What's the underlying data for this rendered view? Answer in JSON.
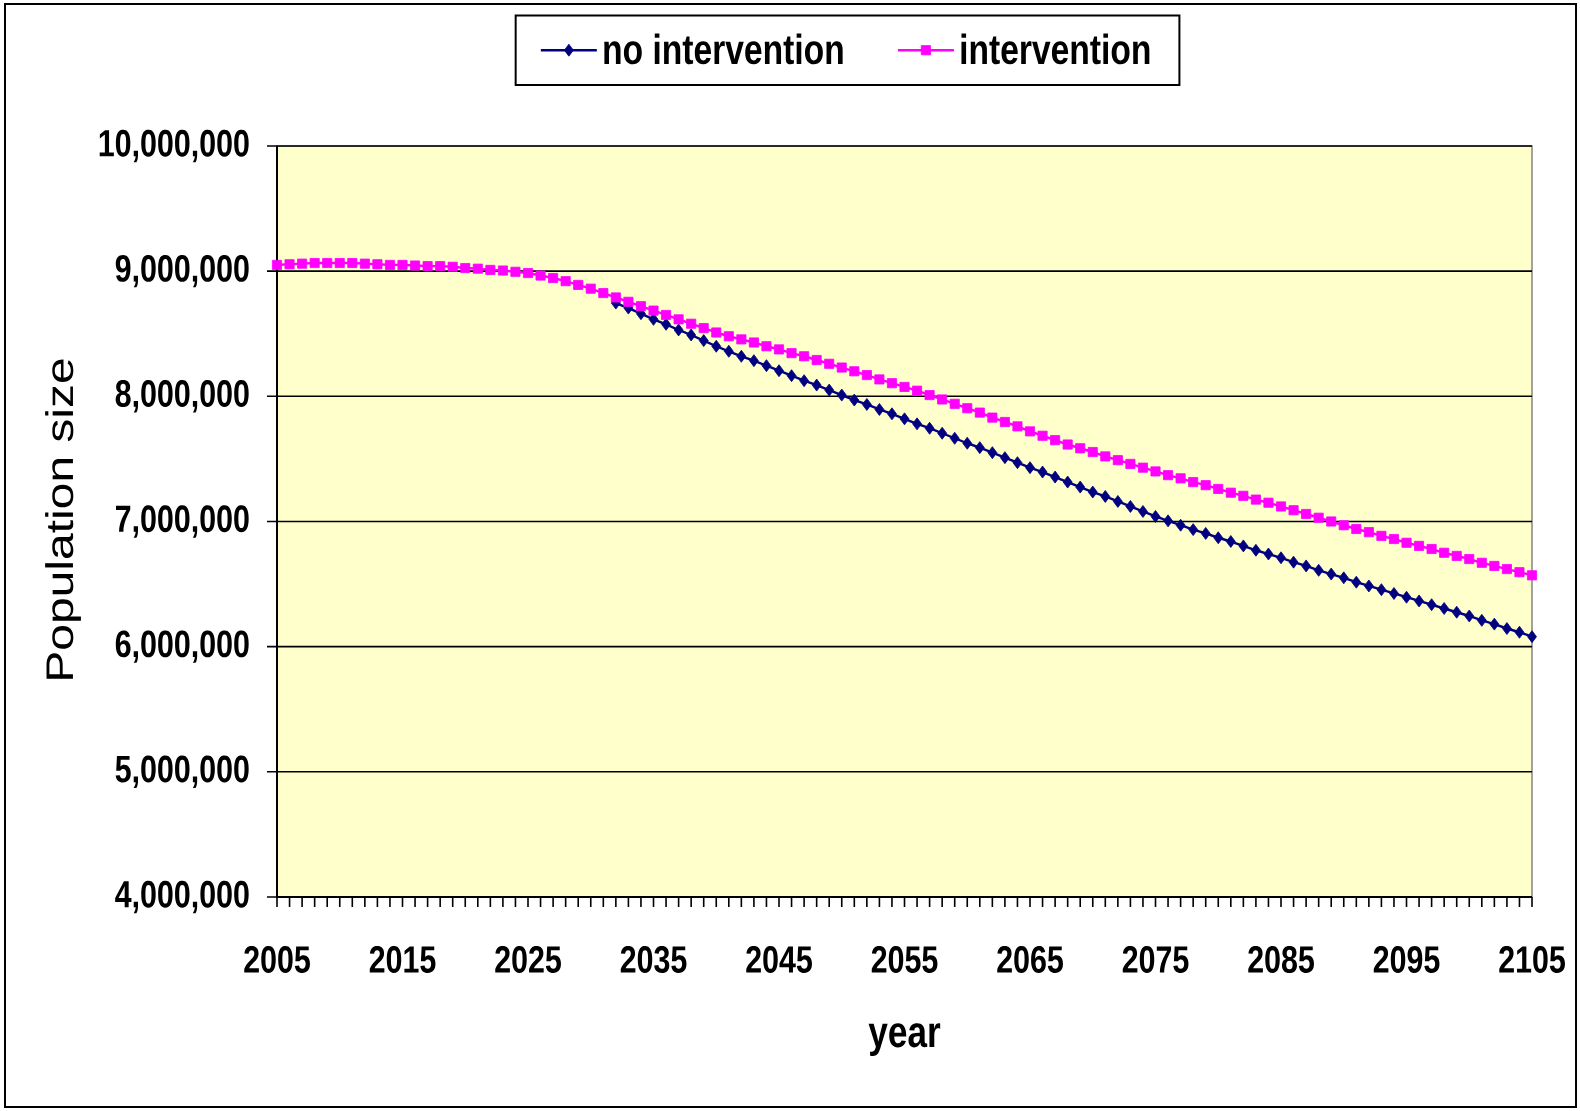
{
  "chart_data": {
    "type": "line",
    "xlabel": "year",
    "ylabel": "Population size",
    "x": [
      2005,
      2006,
      2007,
      2008,
      2009,
      2010,
      2011,
      2012,
      2013,
      2014,
      2015,
      2016,
      2017,
      2018,
      2019,
      2020,
      2021,
      2022,
      2023,
      2024,
      2025,
      2026,
      2027,
      2028,
      2029,
      2030,
      2031,
      2032,
      2033,
      2034,
      2035,
      2036,
      2037,
      2038,
      2039,
      2040,
      2041,
      2042,
      2043,
      2044,
      2045,
      2046,
      2047,
      2048,
      2049,
      2050,
      2051,
      2052,
      2053,
      2054,
      2055,
      2056,
      2057,
      2058,
      2059,
      2060,
      2061,
      2062,
      2063,
      2064,
      2065,
      2066,
      2067,
      2068,
      2069,
      2070,
      2071,
      2072,
      2073,
      2074,
      2075,
      2076,
      2077,
      2078,
      2079,
      2080,
      2081,
      2082,
      2083,
      2084,
      2085,
      2086,
      2087,
      2088,
      2089,
      2090,
      2091,
      2092,
      2093,
      2094,
      2095,
      2096,
      2097,
      2098,
      2099,
      2100,
      2101,
      2102,
      2103,
      2104,
      2105
    ],
    "series": [
      {
        "name": "no intervention",
        "color": "#000080",
        "marker": "diamond",
        "values": [
          null,
          null,
          null,
          null,
          null,
          null,
          null,
          null,
          null,
          null,
          null,
          null,
          null,
          null,
          null,
          null,
          null,
          null,
          null,
          null,
          null,
          null,
          null,
          null,
          null,
          null,
          null,
          8745000,
          8705000,
          8660000,
          8615000,
          8575000,
          8530000,
          8490000,
          8445000,
          8400000,
          8360000,
          8320000,
          8285000,
          8245000,
          8205000,
          8165000,
          8125000,
          8090000,
          8050000,
          8010000,
          7970000,
          7935000,
          7895000,
          7860000,
          7820000,
          7780000,
          7745000,
          7705000,
          7665000,
          7625000,
          7590000,
          7550000,
          7510000,
          7470000,
          7430000,
          7395000,
          7355000,
          7315000,
          7275000,
          7235000,
          7200000,
          7160000,
          7120000,
          7080000,
          7040000,
          7005000,
          6970000,
          6935000,
          6905000,
          6870000,
          6840000,
          6805000,
          6770000,
          6740000,
          6710000,
          6675000,
          6645000,
          6610000,
          6580000,
          6550000,
          6515000,
          6485000,
          6455000,
          6425000,
          6395000,
          6365000,
          6335000,
          6305000,
          6275000,
          6245000,
          6210000,
          6180000,
          6145000,
          6115000,
          6080000
        ]
      },
      {
        "name": "intervention",
        "color": "#ff00ff",
        "marker": "square",
        "values": [
          9050000,
          9055000,
          9060000,
          9065000,
          9065000,
          9065000,
          9065000,
          9060000,
          9055000,
          9050000,
          9050000,
          9045000,
          9040000,
          9040000,
          9035000,
          9025000,
          9020000,
          9010000,
          9005000,
          8995000,
          8985000,
          8965000,
          8945000,
          8920000,
          8890000,
          8860000,
          8825000,
          8790000,
          8755000,
          8720000,
          8685000,
          8650000,
          8615000,
          8580000,
          8545000,
          8510000,
          8480000,
          8455000,
          8430000,
          8400000,
          8375000,
          8345000,
          8320000,
          8290000,
          8260000,
          8230000,
          8200000,
          8170000,
          8135000,
          8105000,
          8075000,
          8045000,
          8010000,
          7975000,
          7940000,
          7905000,
          7870000,
          7830000,
          7795000,
          7760000,
          7720000,
          7685000,
          7650000,
          7615000,
          7585000,
          7555000,
          7520000,
          7490000,
          7460000,
          7430000,
          7400000,
          7370000,
          7345000,
          7315000,
          7290000,
          7260000,
          7230000,
          7205000,
          7175000,
          7150000,
          7120000,
          7090000,
          7060000,
          7030000,
          7000000,
          6970000,
          6940000,
          6915000,
          6885000,
          6860000,
          6830000,
          6805000,
          6780000,
          6750000,
          6725000,
          6700000,
          6670000,
          6645000,
          6620000,
          6595000,
          6570000
        ]
      }
    ],
    "xlim": [
      2005,
      2105
    ],
    "xticks": [
      2005,
      {
        "value": 2006,
        "label": null
      },
      {
        "value": 2007,
        "label": null
      },
      {
        "value": 2008,
        "label": null
      },
      {
        "value": 2009,
        "label": null
      },
      {
        "value": 2010,
        "label": null
      },
      {
        "value": 2011,
        "label": null
      },
      {
        "value": 2012,
        "label": null
      },
      {
        "value": 2013,
        "label": null
      },
      {
        "value": 2014,
        "label": null
      },
      2015,
      {
        "value": 2016,
        "label": null
      },
      {
        "value": 2017,
        "label": null
      },
      {
        "value": 2018,
        "label": null
      },
      {
        "value": 2019,
        "label": null
      },
      {
        "value": 2020,
        "label": null
      },
      {
        "value": 2021,
        "label": null
      },
      {
        "value": 2022,
        "label": null
      },
      {
        "value": 2023,
        "label": null
      },
      {
        "value": 2024,
        "label": null
      },
      2025,
      {
        "value": 2026,
        "label": null
      },
      {
        "value": 2027,
        "label": null
      },
      {
        "value": 2028,
        "label": null
      },
      {
        "value": 2029,
        "label": null
      },
      {
        "value": 2030,
        "label": null
      },
      {
        "value": 2031,
        "label": null
      },
      {
        "value": 2032,
        "label": null
      },
      {
        "value": 2033,
        "label": null
      },
      {
        "value": 2034,
        "label": null
      },
      2035,
      {
        "value": 2036,
        "label": null
      },
      {
        "value": 2037,
        "label": null
      },
      {
        "value": 2038,
        "label": null
      },
      {
        "value": 2039,
        "label": null
      },
      {
        "value": 2040,
        "label": null
      },
      {
        "value": 2041,
        "label": null
      },
      {
        "value": 2042,
        "label": null
      },
      {
        "value": 2043,
        "label": null
      },
      {
        "value": 2044,
        "label": null
      },
      2045,
      {
        "value": 2046,
        "label": null
      },
      {
        "value": 2047,
        "label": null
      },
      {
        "value": 2048,
        "label": null
      },
      {
        "value": 2049,
        "label": null
      },
      {
        "value": 2050,
        "label": null
      },
      {
        "value": 2051,
        "label": null
      },
      {
        "value": 2052,
        "label": null
      },
      {
        "value": 2053,
        "label": null
      },
      {
        "value": 2054,
        "label": null
      },
      2055,
      {
        "value": 2056,
        "label": null
      },
      {
        "value": 2057,
        "label": null
      },
      {
        "value": 2058,
        "label": null
      },
      {
        "value": 2059,
        "label": null
      },
      {
        "value": 2060,
        "label": null
      },
      {
        "value": 2061,
        "label": null
      },
      {
        "value": 2062,
        "label": null
      },
      {
        "value": 2063,
        "label": null
      },
      {
        "value": 2064,
        "label": null
      },
      2065,
      {
        "value": 2066,
        "label": null
      },
      {
        "value": 2067,
        "label": null
      },
      {
        "value": 2068,
        "label": null
      },
      {
        "value": 2069,
        "label": null
      },
      {
        "value": 2070,
        "label": null
      },
      {
        "value": 2071,
        "label": null
      },
      {
        "value": 2072,
        "label": null
      },
      {
        "value": 2073,
        "label": null
      },
      {
        "value": 2074,
        "label": null
      },
      2075,
      {
        "value": 2076,
        "label": null
      },
      {
        "value": 2077,
        "label": null
      },
      {
        "value": 2078,
        "label": null
      },
      {
        "value": 2079,
        "label": null
      },
      {
        "value": 2080,
        "label": null
      },
      {
        "value": 2081,
        "label": null
      },
      {
        "value": 2082,
        "label": null
      },
      {
        "value": 2083,
        "label": null
      },
      {
        "value": 2084,
        "label": null
      },
      2085,
      {
        "value": 2086,
        "label": null
      },
      {
        "value": 2087,
        "label": null
      },
      {
        "value": 2088,
        "label": null
      },
      {
        "value": 2089,
        "label": null
      },
      {
        "value": 2090,
        "label": null
      },
      {
        "value": 2091,
        "label": null
      },
      {
        "value": 2092,
        "label": null
      },
      {
        "value": 2093,
        "label": null
      },
      {
        "value": 2094,
        "label": null
      },
      2095,
      {
        "value": 2096,
        "label": null
      },
      {
        "value": 2097,
        "label": null
      },
      {
        "value": 2098,
        "label": null
      },
      {
        "value": 2099,
        "label": null
      },
      {
        "value": 2100,
        "label": null
      },
      {
        "value": 2101,
        "label": null
      },
      {
        "value": 2102,
        "label": null
      },
      {
        "value": 2103,
        "label": null
      },
      {
        "value": 2104,
        "label": null
      },
      2105
    ],
    "ylim": [
      4000000,
      10000000
    ],
    "yticks": [
      {
        "value": 4000000,
        "label": "4,000,000"
      },
      {
        "value": 5000000,
        "label": "5,000,000"
      },
      {
        "value": 6000000,
        "label": "6,000,000"
      },
      {
        "value": 7000000,
        "label": "7,000,000"
      },
      {
        "value": 8000000,
        "label": "8,000,000"
      },
      {
        "value": 9000000,
        "label": "9,000,000"
      },
      {
        "value": 10000000,
        "label": "10,000,000"
      }
    ],
    "grid": "y",
    "legend": "top"
  }
}
